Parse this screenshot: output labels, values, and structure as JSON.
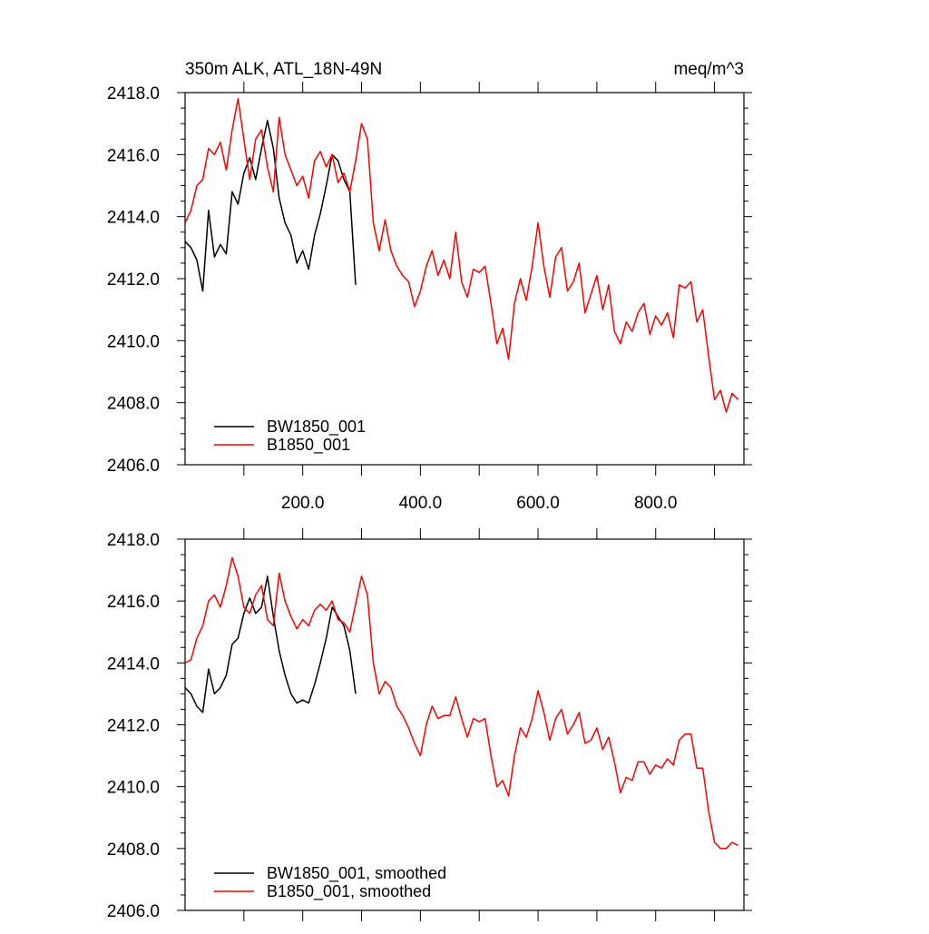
{
  "chart_data": [
    {
      "type": "line",
      "title": "350m ALK, ATL_18N-49N",
      "units": "meq/m^3",
      "xlim": [
        0,
        950
      ],
      "ylim": [
        2406,
        2418
      ],
      "x_ticks": [
        200,
        400,
        600,
        800
      ],
      "x_tick_labels": [
        "200.0",
        "400.0",
        "600.0",
        "800.0"
      ],
      "y_ticks": [
        2406,
        2408,
        2410,
        2412,
        2414,
        2416,
        2418
      ],
      "y_tick_labels": [
        "2406.0",
        "2408.0",
        "2410.0",
        "2412.0",
        "2414.0",
        "2416.0",
        "2418.0"
      ],
      "legend_position": "bottom-left",
      "series": [
        {
          "name": "BW1850_001",
          "color": "#000000",
          "x": [
            0,
            10,
            20,
            30,
            40,
            50,
            60,
            70,
            80,
            90,
            100,
            110,
            120,
            130,
            140,
            150,
            160,
            170,
            180,
            190,
            200,
            210,
            220,
            230,
            240,
            250,
            260,
            270,
            280,
            285,
            290
          ],
          "y": [
            2413.2,
            2413.0,
            2412.6,
            2411.6,
            2414.2,
            2412.7,
            2413.1,
            2412.8,
            2414.8,
            2414.4,
            2415.4,
            2415.9,
            2415.2,
            2416.2,
            2417.1,
            2416.2,
            2414.6,
            2413.8,
            2413.4,
            2412.5,
            2412.9,
            2412.3,
            2413.4,
            2414.1,
            2415.0,
            2416.0,
            2415.8,
            2415.2,
            2414.8,
            2413.3,
            2411.8
          ]
        },
        {
          "name": "B1850_001",
          "color": "#ff0000",
          "x": [
            0,
            10,
            20,
            30,
            40,
            50,
            60,
            70,
            80,
            90,
            100,
            110,
            120,
            130,
            140,
            150,
            160,
            170,
            180,
            190,
            200,
            210,
            220,
            230,
            240,
            250,
            260,
            270,
            280,
            290,
            300,
            310,
            320,
            330,
            340,
            350,
            360,
            370,
            380,
            390,
            400,
            410,
            420,
            430,
            440,
            450,
            460,
            470,
            480,
            490,
            500,
            510,
            520,
            530,
            540,
            550,
            560,
            570,
            580,
            590,
            600,
            610,
            620,
            630,
            640,
            650,
            660,
            670,
            680,
            690,
            700,
            710,
            720,
            730,
            740,
            750,
            760,
            770,
            780,
            790,
            800,
            810,
            820,
            830,
            840,
            850,
            860,
            870,
            880,
            890,
            900,
            910,
            920,
            930,
            940
          ],
          "y": [
            2413.8,
            2414.2,
            2415.0,
            2415.2,
            2416.2,
            2416.0,
            2416.4,
            2415.5,
            2416.8,
            2417.8,
            2416.5,
            2415.2,
            2416.5,
            2416.8,
            2415.6,
            2414.8,
            2417.2,
            2416.0,
            2415.5,
            2415.0,
            2415.3,
            2414.6,
            2415.8,
            2416.1,
            2415.6,
            2416.0,
            2415.1,
            2415.4,
            2414.8,
            2415.8,
            2417.0,
            2416.5,
            2413.8,
            2412.9,
            2413.9,
            2412.9,
            2412.4,
            2412.1,
            2411.9,
            2411.1,
            2411.6,
            2412.4,
            2412.9,
            2412.1,
            2412.6,
            2412.0,
            2413.5,
            2411.9,
            2411.4,
            2412.3,
            2412.2,
            2412.4,
            2411.2,
            2409.9,
            2410.4,
            2409.4,
            2411.2,
            2412.0,
            2411.3,
            2412.4,
            2413.8,
            2412.4,
            2411.4,
            2412.7,
            2413.0,
            2411.6,
            2411.9,
            2412.5,
            2410.9,
            2411.5,
            2412.1,
            2411.0,
            2411.8,
            2410.3,
            2409.9,
            2410.6,
            2410.3,
            2410.9,
            2411.2,
            2410.2,
            2410.8,
            2410.5,
            2410.9,
            2410.1,
            2411.8,
            2411.7,
            2411.9,
            2410.6,
            2411.0,
            2409.5,
            2408.1,
            2408.4,
            2407.7,
            2408.3,
            2408.1
          ]
        }
      ]
    },
    {
      "type": "line",
      "xlim": [
        0,
        950
      ],
      "ylim": [
        2406,
        2418
      ],
      "y_ticks": [
        2406,
        2408,
        2410,
        2412,
        2414,
        2416,
        2418
      ],
      "y_tick_labels": [
        "2406.0",
        "2408.0",
        "2410.0",
        "2412.0",
        "2414.0",
        "2416.0",
        "2418.0"
      ],
      "legend_position": "bottom-left",
      "series": [
        {
          "name": "BW1850_001, smoothed",
          "color": "#000000",
          "x": [
            0,
            10,
            20,
            30,
            40,
            50,
            60,
            70,
            80,
            90,
            100,
            110,
            120,
            130,
            140,
            150,
            160,
            170,
            180,
            190,
            200,
            210,
            220,
            230,
            240,
            250,
            260,
            270,
            280,
            290
          ],
          "y": [
            2413.2,
            2413.0,
            2412.6,
            2412.4,
            2413.8,
            2413.0,
            2413.2,
            2413.6,
            2414.6,
            2414.8,
            2415.6,
            2416.1,
            2415.6,
            2415.8,
            2416.8,
            2415.5,
            2414.4,
            2413.6,
            2413.0,
            2412.7,
            2412.8,
            2412.7,
            2413.3,
            2414.0,
            2414.8,
            2415.8,
            2415.5,
            2415.2,
            2414.4,
            2413.0
          ]
        },
        {
          "name": "B1850_001, smoothed",
          "color": "#ff0000",
          "x": [
            0,
            10,
            20,
            30,
            40,
            50,
            60,
            70,
            80,
            90,
            100,
            110,
            120,
            130,
            140,
            150,
            160,
            170,
            180,
            190,
            200,
            210,
            220,
            230,
            240,
            250,
            260,
            270,
            280,
            290,
            300,
            310,
            320,
            330,
            340,
            350,
            360,
            370,
            380,
            390,
            400,
            410,
            420,
            430,
            440,
            450,
            460,
            470,
            480,
            490,
            500,
            510,
            520,
            530,
            540,
            550,
            560,
            570,
            580,
            590,
            600,
            610,
            620,
            630,
            640,
            650,
            660,
            670,
            680,
            690,
            700,
            710,
            720,
            730,
            740,
            750,
            760,
            770,
            780,
            790,
            800,
            810,
            820,
            830,
            840,
            850,
            860,
            870,
            880,
            890,
            900,
            910,
            920,
            930,
            940
          ],
          "y": [
            2414.0,
            2414.1,
            2414.8,
            2415.2,
            2416.0,
            2416.2,
            2415.8,
            2416.5,
            2417.4,
            2416.8,
            2415.8,
            2415.6,
            2416.2,
            2416.5,
            2415.4,
            2415.2,
            2416.9,
            2416.0,
            2415.5,
            2415.1,
            2415.4,
            2415.2,
            2415.7,
            2415.9,
            2415.7,
            2416.0,
            2415.4,
            2415.3,
            2415.0,
            2415.9,
            2416.8,
            2416.2,
            2414.0,
            2413.0,
            2413.4,
            2413.2,
            2412.6,
            2412.3,
            2411.9,
            2411.4,
            2411.0,
            2412.0,
            2412.6,
            2412.2,
            2412.3,
            2412.3,
            2412.9,
            2412.2,
            2411.6,
            2412.2,
            2412.1,
            2412.2,
            2411.0,
            2410.0,
            2410.2,
            2409.7,
            2411.0,
            2411.9,
            2411.6,
            2412.2,
            2413.1,
            2412.4,
            2411.5,
            2412.2,
            2412.5,
            2411.7,
            2412.0,
            2412.4,
            2411.4,
            2411.5,
            2411.9,
            2411.2,
            2411.6,
            2410.8,
            2409.8,
            2410.3,
            2410.2,
            2410.8,
            2410.8,
            2410.4,
            2410.7,
            2410.6,
            2410.9,
            2410.7,
            2411.5,
            2411.7,
            2411.7,
            2410.6,
            2410.6,
            2409.2,
            2408.2,
            2408.0,
            2408.0,
            2408.2,
            2408.1
          ]
        }
      ]
    }
  ]
}
